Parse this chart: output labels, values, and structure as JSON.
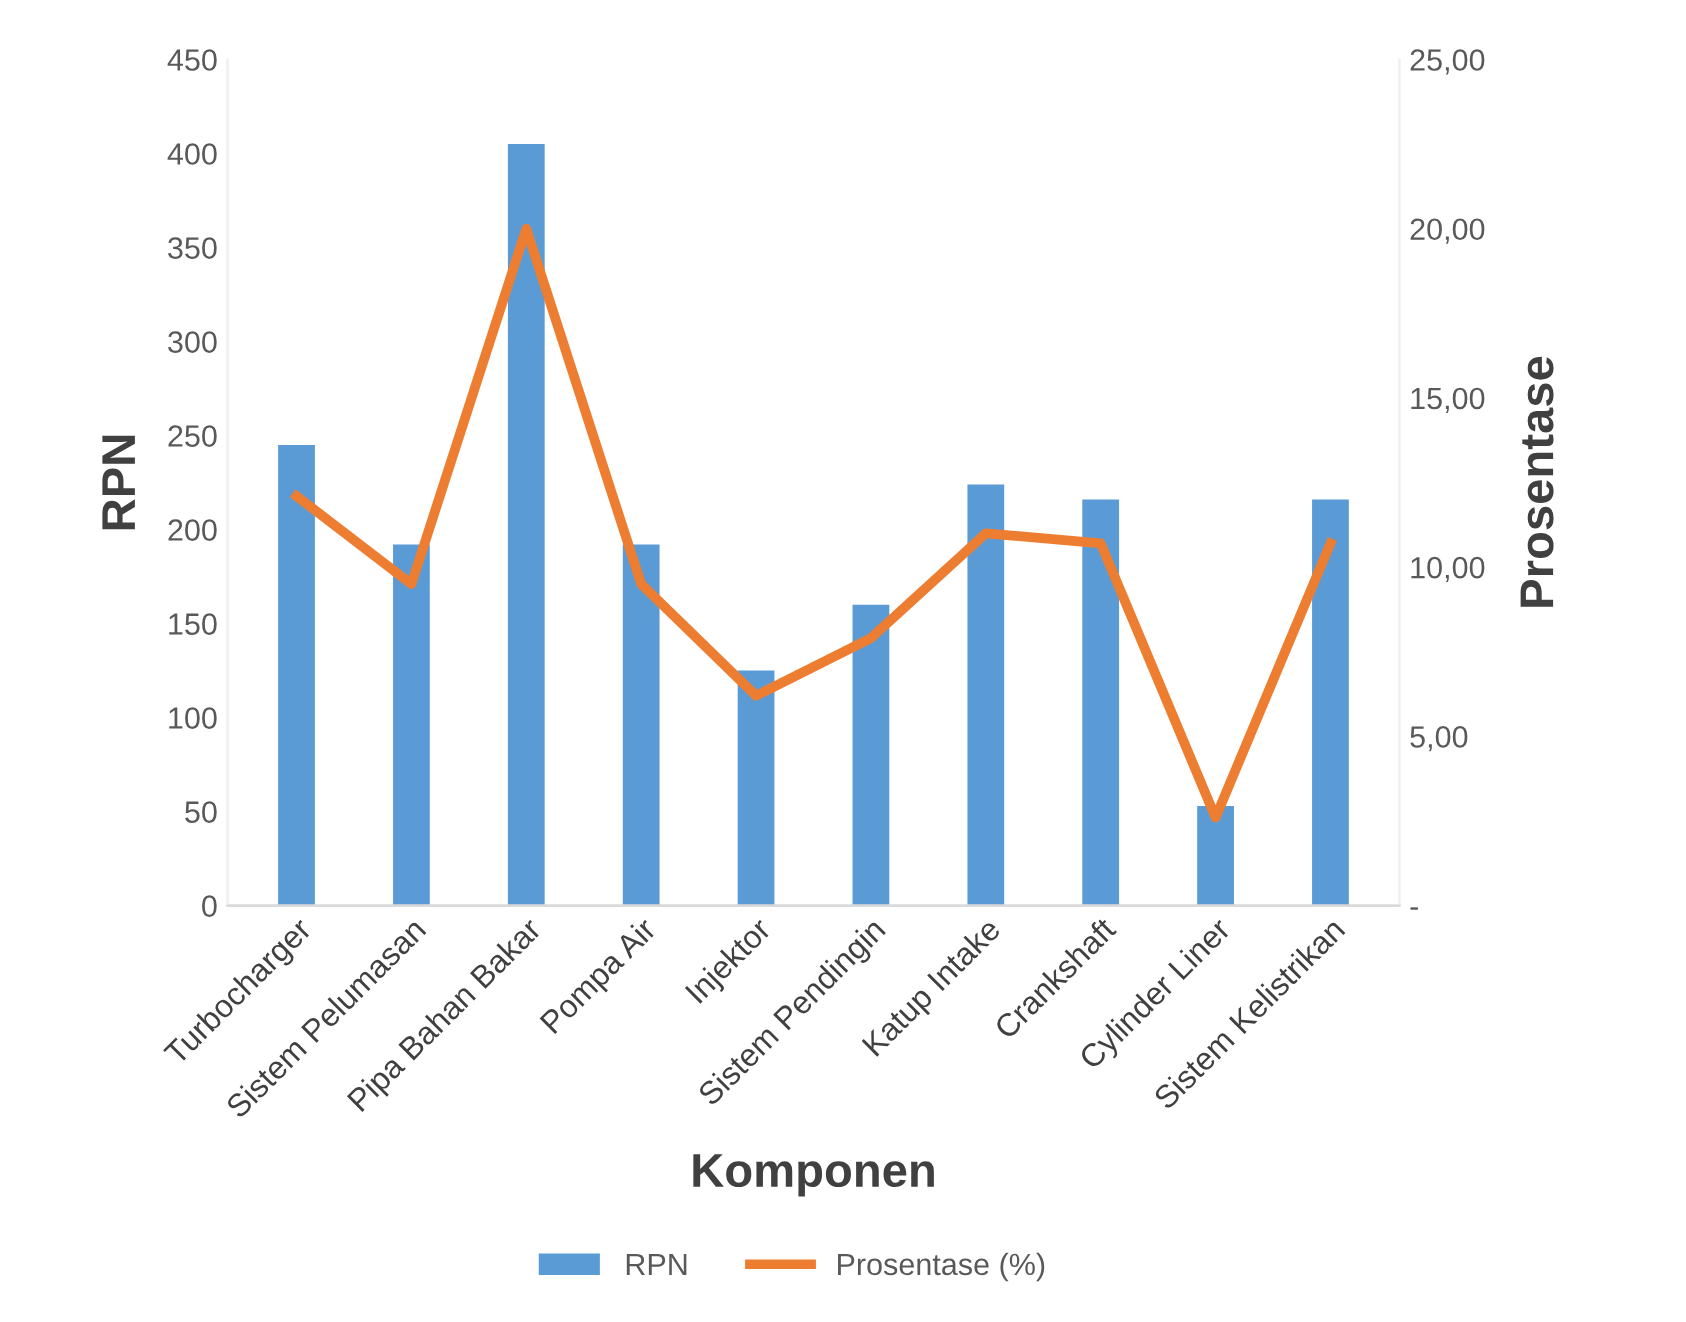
{
  "chart_data": {
    "type": "bar",
    "categories": [
      "Turbocharger",
      "Sistem Pelumasan",
      "Pipa Bahan Bakar",
      "Pompa Air",
      "Injektor",
      "Sistem Pendingin",
      "Katup Intake",
      "Crankshaft",
      "Cylinder Liner",
      "Sistem Kelistrikan"
    ],
    "series": [
      {
        "name": "RPN",
        "color": "#5b9bd5",
        "values": [
          245,
          192,
          405,
          192,
          125,
          160,
          224,
          216,
          53,
          216
        ]
      },
      {
        "name": "Prosentase (%)",
        "type": "line",
        "axis": "y2",
        "color": "#ed7d31",
        "values": [
          12.1,
          9.5,
          20.0,
          9.5,
          6.2,
          7.9,
          11.0,
          10.7,
          2.6,
          10.7
        ]
      }
    ],
    "xlabel": "Komponen",
    "ylabel": "RPN",
    "y2label": "Prosentase",
    "ylim": [
      0,
      450
    ],
    "yticks": [
      0,
      50,
      100,
      150,
      200,
      250,
      300,
      350,
      400,
      450
    ],
    "y2lim": [
      0,
      25
    ],
    "y2ticks": [
      {
        "value": 0,
        "label": "-"
      },
      {
        "value": 5,
        "label": "5,00"
      },
      {
        "value": 10,
        "label": "10,00"
      },
      {
        "value": 15,
        "label": "15,00"
      },
      {
        "value": 20,
        "label": "20,00"
      },
      {
        "value": 25,
        "label": "25,00"
      }
    ],
    "grid": false,
    "legend": "bottom",
    "marker": "none",
    "line_style": "solid"
  }
}
